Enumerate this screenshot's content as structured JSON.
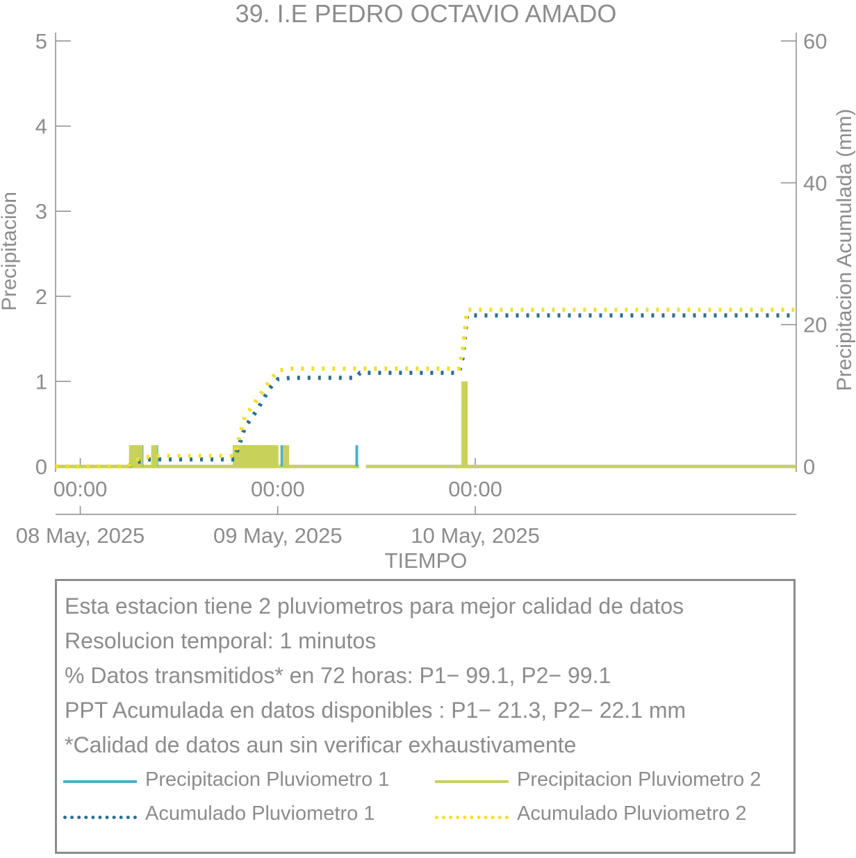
{
  "chart_data": {
    "type": "line",
    "title": "39. I.E PEDRO OCTAVIO AMADO",
    "xlabel": "TIEMPO",
    "ylabel": "Precipitacion",
    "y2label": "Precipitacion Acumulada (mm)",
    "ylim": [
      0,
      5
    ],
    "y2lim": [
      0,
      60
    ],
    "xlim_hours": [
      -3,
      87
    ],
    "yticks": [
      0,
      1,
      2,
      3,
      4,
      5
    ],
    "y2ticks": [
      0,
      20,
      40,
      60
    ],
    "x_tick_hours": [
      0,
      24,
      48
    ],
    "x_tick_times": [
      "00:00",
      "00:00",
      "00:00"
    ],
    "x_tick_dates": [
      "08 May, 2025",
      "09 May, 2025",
      "10 May, 2025"
    ],
    "legend_placement": "below",
    "grid": false,
    "colors": {
      "p1": "#4ab0c8",
      "p2": "#c8d25a",
      "acum1": "#2a6f8f",
      "acum2": "#f2e02a",
      "axis": "#8c8c8c"
    },
    "series": [
      {
        "name": "Precipitacion Pluviometro 1",
        "axis": "left",
        "style": "bars",
        "points": [
          [
            6.5,
            0.25
          ],
          [
            7.5,
            0.25
          ],
          [
            9.3,
            0.25
          ],
          [
            20.0,
            0.25
          ],
          [
            20.4,
            0.25
          ],
          [
            22.4,
            0.25
          ],
          [
            23.5,
            0.25
          ],
          [
            24.5,
            0.25
          ],
          [
            33.6,
            0.25
          ],
          [
            46.5,
            0.75
          ],
          [
            46.9,
            0.25
          ]
        ]
      },
      {
        "name": "Precipitacion Pluviometro 2",
        "axis": "left",
        "style": "bars",
        "points": [
          [
            6.3,
            0.25
          ],
          [
            6.6,
            0.25
          ],
          [
            6.9,
            0.25
          ],
          [
            7.2,
            0.25
          ],
          [
            9.0,
            0.25
          ],
          [
            18.9,
            0.25
          ],
          [
            19.2,
            0.25
          ],
          [
            19.5,
            0.25
          ],
          [
            19.8,
            0.25
          ],
          [
            20.1,
            0.25
          ],
          [
            20.4,
            0.25
          ],
          [
            20.7,
            0.25
          ],
          [
            21.0,
            0.25
          ],
          [
            21.3,
            0.25
          ],
          [
            21.6,
            0.25
          ],
          [
            21.9,
            0.25
          ],
          [
            22.2,
            0.25
          ],
          [
            22.5,
            0.25
          ],
          [
            22.8,
            0.25
          ],
          [
            23.1,
            0.25
          ],
          [
            23.4,
            0.25
          ],
          [
            23.7,
            0.25
          ],
          [
            25.0,
            0.25
          ],
          [
            46.7,
            1.0
          ]
        ]
      },
      {
        "name": "Acumulado Pluviometro 1",
        "axis": "right",
        "style": "dotted",
        "points": [
          [
            -3,
            0
          ],
          [
            5.8,
            0
          ],
          [
            6.5,
            0.5
          ],
          [
            7.5,
            0.8
          ],
          [
            8.5,
            1.0
          ],
          [
            18.7,
            1.0
          ],
          [
            19.3,
            3.0
          ],
          [
            20.0,
            5.5
          ],
          [
            21.5,
            8.0
          ],
          [
            23.0,
            11.0
          ],
          [
            24.0,
            12.3
          ],
          [
            25.5,
            12.5
          ],
          [
            33.5,
            12.5
          ],
          [
            34.0,
            13.2
          ],
          [
            46.0,
            13.2
          ],
          [
            46.5,
            15.5
          ],
          [
            47.0,
            21.3
          ],
          [
            87,
            21.3
          ]
        ]
      },
      {
        "name": "Acumulado Pluviometro 2",
        "axis": "right",
        "style": "dotted",
        "points": [
          [
            -3,
            0
          ],
          [
            5.8,
            0
          ],
          [
            6.5,
            0.8
          ],
          [
            7.5,
            1.2
          ],
          [
            9.0,
            1.5
          ],
          [
            18.7,
            1.5
          ],
          [
            19.3,
            4.0
          ],
          [
            20.0,
            7.0
          ],
          [
            21.5,
            9.5
          ],
          [
            23.0,
            12.0
          ],
          [
            24.0,
            13.5
          ],
          [
            25.5,
            13.8
          ],
          [
            46.0,
            13.8
          ],
          [
            46.5,
            16.5
          ],
          [
            47.0,
            22.1
          ],
          [
            87,
            22.1
          ]
        ]
      }
    ]
  },
  "info": {
    "line1": "Esta estacion tiene 2 pluviometros para mejor calidad de datos",
    "line2": "Resolucion temporal: 1 minutos",
    "line3": "% Datos transmitidos* en 72 horas: P1− 99.1, P2− 99.1",
    "line4": "PPT Acumulada en datos disponibles : P1− 21.3, P2− 22.1 mm",
    "line5": "*Calidad de datos aun sin verificar exhaustivamente"
  },
  "legend": {
    "p1": "Precipitacion Pluviometro 1",
    "p2": "Precipitacion Pluviometro 2",
    "acum1": "Acumulado Pluviometro 1",
    "acum2": "Acumulado Pluviometro 2"
  }
}
